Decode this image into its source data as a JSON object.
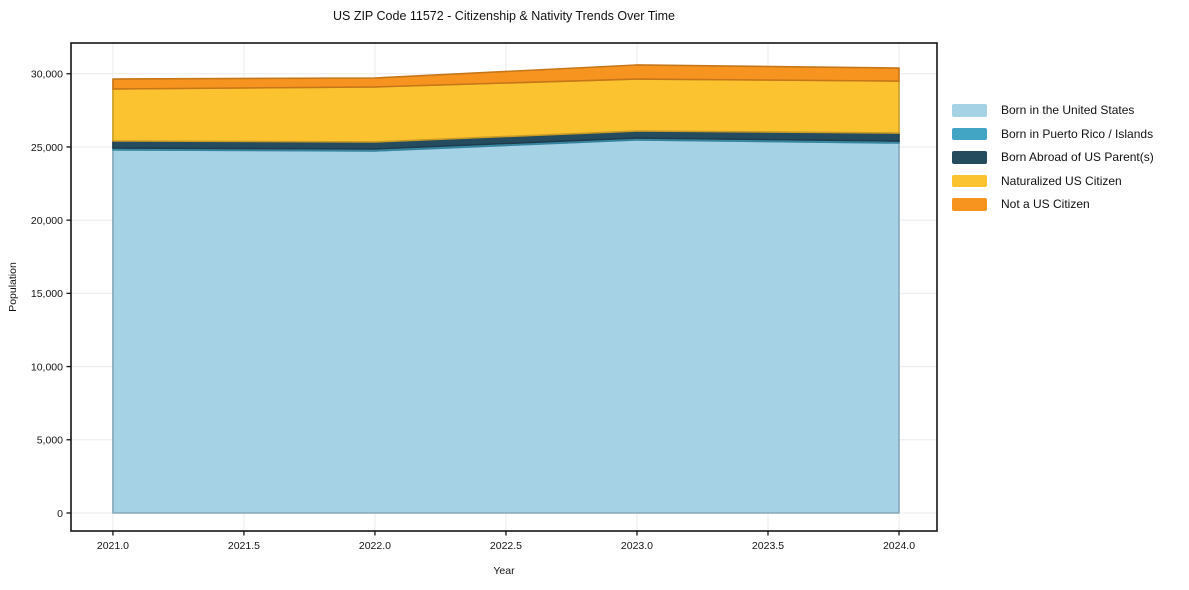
{
  "title": "US ZIP Code 11572 - Citizenship & Nativity Trends Over Time",
  "chart_data": {
    "type": "area",
    "stacked": true,
    "title": "US ZIP Code 11572 - Citizenship & Nativity Trends Over Time",
    "xlabel": "Year",
    "ylabel": "Population",
    "x": [
      2021,
      2022,
      2023,
      2024
    ],
    "series": [
      {
        "name": "Born in the United States",
        "color": "#a6d2e6",
        "values": [
          24800,
          24730,
          25480,
          25270
        ]
      },
      {
        "name": "Born in Puerto Rico / Islands",
        "color": "#43a5c4",
        "values": [
          130,
          130,
          130,
          130
        ]
      },
      {
        "name": "Born Abroad of US Parent(s)",
        "color": "#254b5f",
        "values": [
          480,
          480,
          480,
          550
        ]
      },
      {
        "name": "Naturalized US Citizen",
        "color": "#fcc330",
        "values": [
          3550,
          3760,
          3550,
          3550
        ]
      },
      {
        "name": "Not a US Citizen",
        "color": "#f7941f",
        "values": [
          680,
          610,
          960,
          890
        ]
      }
    ],
    "x_ticks": [
      2021.0,
      2021.5,
      2022.0,
      2022.5,
      2023.0,
      2023.5,
      2024.0
    ],
    "x_tick_labels": [
      "2021.0",
      "2021.5",
      "2022.0",
      "2022.5",
      "2023.0",
      "2023.5",
      "2024.0"
    ],
    "y_ticks": [
      0,
      5000,
      10000,
      15000,
      20000,
      25000,
      30000
    ],
    "y_tick_labels": [
      "0",
      "5,000",
      "10,000",
      "15,000",
      "20,000",
      "25,000",
      "30,000"
    ],
    "xlim": [
      2020.84,
      2024.145
    ],
    "ylim": [
      -1230,
      32100
    ],
    "grid": true,
    "grid_color": "#ebebeb",
    "spine_color": "#141414",
    "tick_label_color": "#141414",
    "legend_position": "right"
  }
}
